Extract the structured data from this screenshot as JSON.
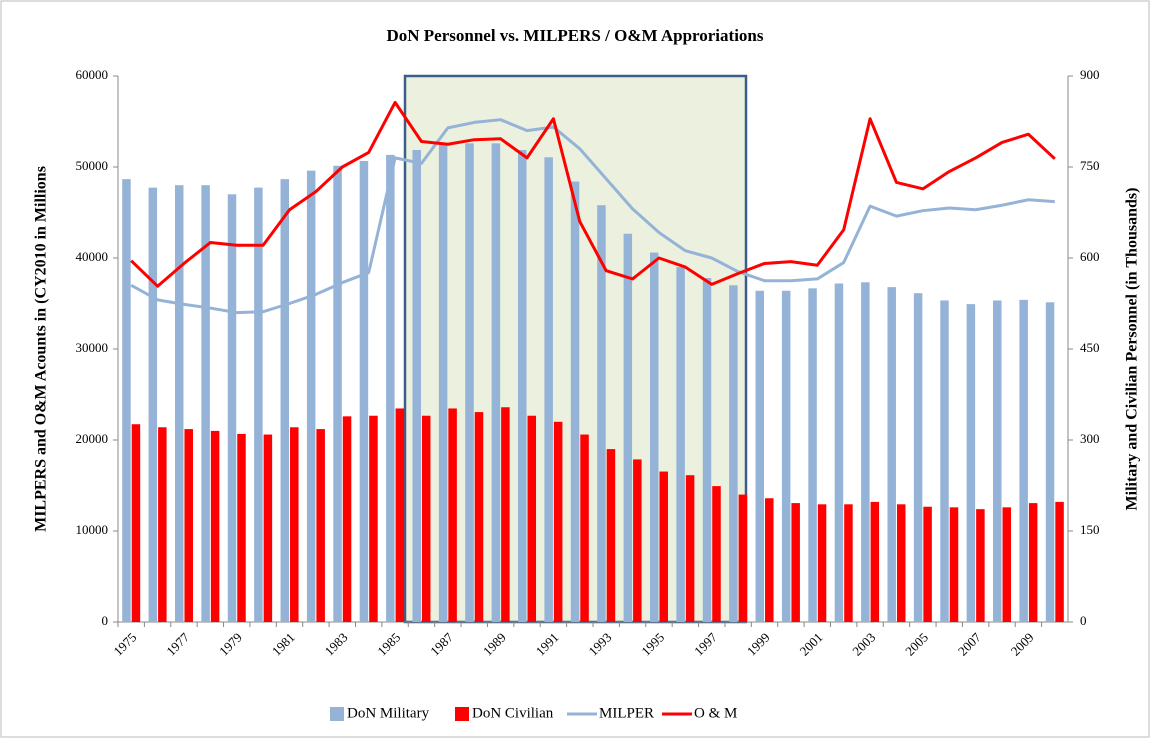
{
  "chart_data": {
    "type": "bar_line",
    "title": "DoN Personnel vs. MILPERS / O&M Approriations",
    "ylabel": "MILPERS and O&M Acounts in (CY2010 in Millions",
    "y2label": "Military and Civilian Personnel (in Thousands)",
    "categories": [
      "1975",
      null,
      "1977",
      null,
      "1979",
      null,
      "1981",
      null,
      "1983",
      null,
      "1985",
      null,
      "1987",
      null,
      "1989",
      null,
      "1991",
      null,
      "1993",
      null,
      "1995",
      null,
      "1997",
      null,
      "1999",
      null,
      "2001",
      null,
      "2003",
      null,
      "2005",
      null,
      "2007",
      null,
      "2009",
      null
    ],
    "ylim": [
      0,
      60000
    ],
    "yticks": [
      0,
      10000,
      20000,
      30000,
      40000,
      50000,
      60000
    ],
    "y2lim": [
      0,
      900
    ],
    "y2ticks": [
      0,
      150,
      300,
      450,
      600,
      750,
      900
    ],
    "series": [
      {
        "name": "DoN Military",
        "type": "bar",
        "axis": "y2",
        "color": "#95b3d7",
        "values": [
          730,
          716,
          720,
          720,
          705,
          716,
          730,
          744,
          752,
          760,
          770,
          778,
          788,
          789,
          789,
          778,
          766,
          726,
          687,
          640,
          609,
          585,
          567,
          555,
          546,
          546,
          550,
          558,
          560,
          552,
          542,
          530,
          524,
          530,
          531,
          527
        ]
      },
      {
        "name": "DoN Civilian",
        "type": "bar",
        "axis": "y2",
        "color": "#ff0000",
        "values": [
          326,
          321,
          318,
          315,
          310,
          309,
          321,
          318,
          339,
          340,
          352,
          340,
          352,
          346,
          354,
          340,
          330,
          309,
          285,
          268,
          248,
          242,
          224,
          210,
          204,
          196,
          194,
          194,
          198,
          194,
          190,
          189,
          186,
          189,
          196,
          198
        ]
      },
      {
        "name": "MILPER",
        "type": "line",
        "color": "#95b3d7",
        "values": [
          37000,
          35400,
          34900,
          34500,
          34000,
          34100,
          35000,
          36000,
          37300,
          38400,
          51000,
          50400,
          54300,
          54900,
          55200,
          54000,
          54400,
          52000,
          48700,
          45400,
          42800,
          40800,
          40000,
          38500,
          37500,
          37500,
          37700,
          39500,
          45700,
          44600,
          45200,
          45500,
          45300,
          45800,
          46400,
          46200
        ]
      },
      {
        "name": "O & M",
        "type": "line",
        "color": "#ff0000",
        "values": [
          39700,
          36900,
          39400,
          41700,
          41400,
          41400,
          45300,
          47300,
          50000,
          51600,
          57100,
          52800,
          52500,
          53000,
          53100,
          51000,
          55300,
          44000,
          38600,
          37700,
          40000,
          39000,
          37100,
          38300,
          39400,
          39600,
          39200,
          43100,
          55300,
          48300,
          47600,
          49500,
          51000,
          52700,
          53600,
          50900
        ]
      }
    ]
  }
}
